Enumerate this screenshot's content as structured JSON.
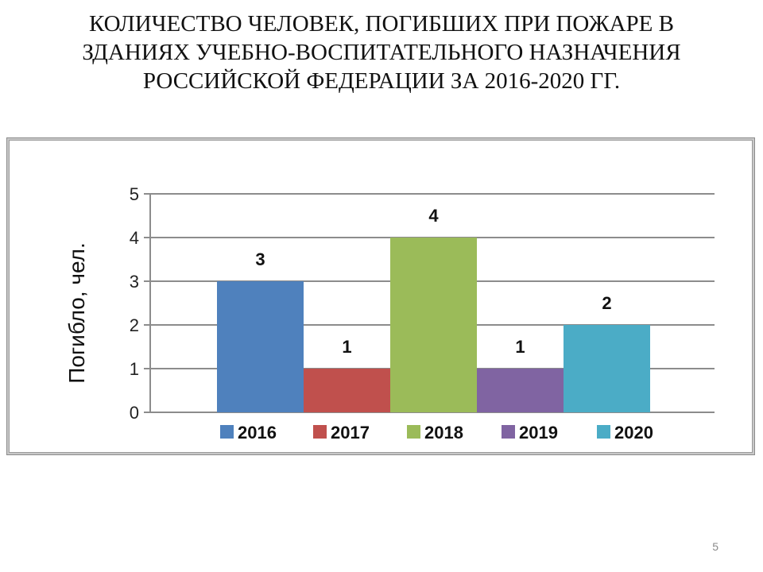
{
  "title_lines": [
    "КОЛИЧЕСТВО ЧЕЛОВЕК, ПОГИБШИХ ПРИ ПОЖАРЕ В",
    "ЗДАНИЯХ УЧЕБНО-ВОСПИТАТЕЛЬНОГО НАЗНАЧЕНИЯ",
    "РОССИЙСКОЙ ФЕДЕРАЦИИ ЗА 2016-2020 ГГ."
  ],
  "page_number": "5",
  "chart_data": {
    "type": "bar",
    "ylabel": "Погибло, чел.",
    "xlabel": "",
    "ylim": [
      0,
      5
    ],
    "yticks": [
      "0",
      "1",
      "2",
      "3",
      "4",
      "5"
    ],
    "grid": true,
    "legend_position": "bottom",
    "series": [
      {
        "name": "2016",
        "value": 3,
        "label": "3",
        "color": "#4f81bd"
      },
      {
        "name": "2017",
        "value": 1,
        "label": "1",
        "color": "#c0504d"
      },
      {
        "name": "2018",
        "value": 4,
        "label": "4",
        "color": "#9bbb59"
      },
      {
        "name": "2019",
        "value": 1,
        "label": "1",
        "color": "#8064a2"
      },
      {
        "name": "2020",
        "value": 2,
        "label": "2",
        "color": "#4bacc6"
      }
    ]
  }
}
